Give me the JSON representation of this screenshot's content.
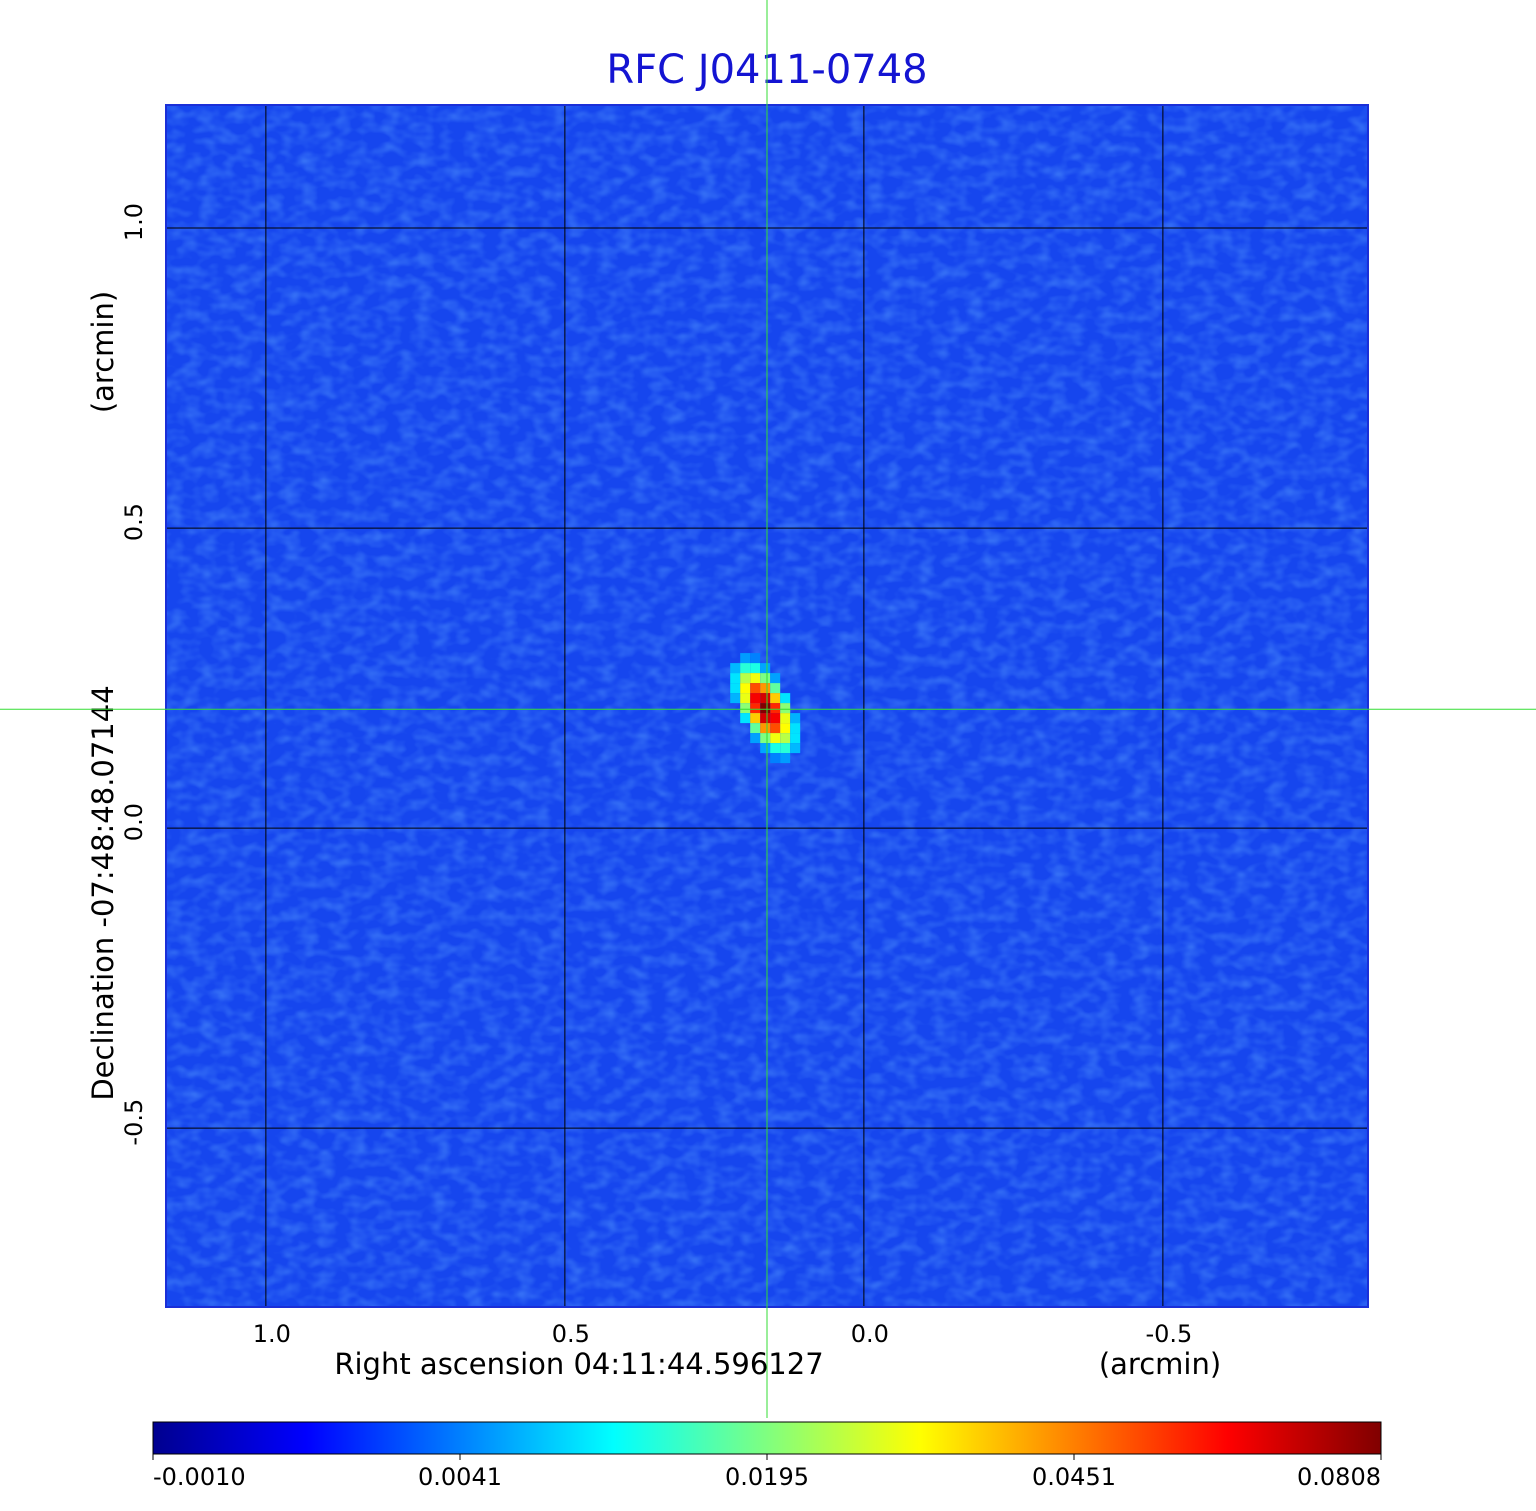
{
  "chart_data": {
    "type": "image",
    "title": "RFC J0411-0748",
    "xlabel": "Right ascension  04:11:44.596127",
    "xunit": "(arcmin)",
    "ylabel": "Declination  -07:48:48.07144",
    "yunit": "(arcmin)",
    "xlim": [
      1.167,
      -0.843
    ],
    "ylim": [
      -0.798,
      1.205
    ],
    "xticks": [
      {
        "value": 1,
        "label": "1.0"
      },
      0.5,
      {
        "value": 0,
        "label": "0.0"
      },
      -0.5
    ],
    "yticks": [
      {
        "value": 1,
        "label": "1.0"
      },
      0.5,
      {
        "value": 0,
        "label": "0.0"
      },
      -0.5
    ],
    "grid": true,
    "grid_color": "#000000",
    "background_color": "#1646ee",
    "crosshair": {
      "x": 0.162,
      "y": 0.198,
      "color": "#33dd33"
    },
    "peak": {
      "x": 0.165,
      "y": 0.2,
      "value": 0.0808
    },
    "colormap": "jet",
    "colorbar_ticks": [
      {
        "value": -0.001,
        "label": "-0.0010"
      },
      0.0041,
      0.0195,
      0.0451,
      0.0808
    ]
  }
}
